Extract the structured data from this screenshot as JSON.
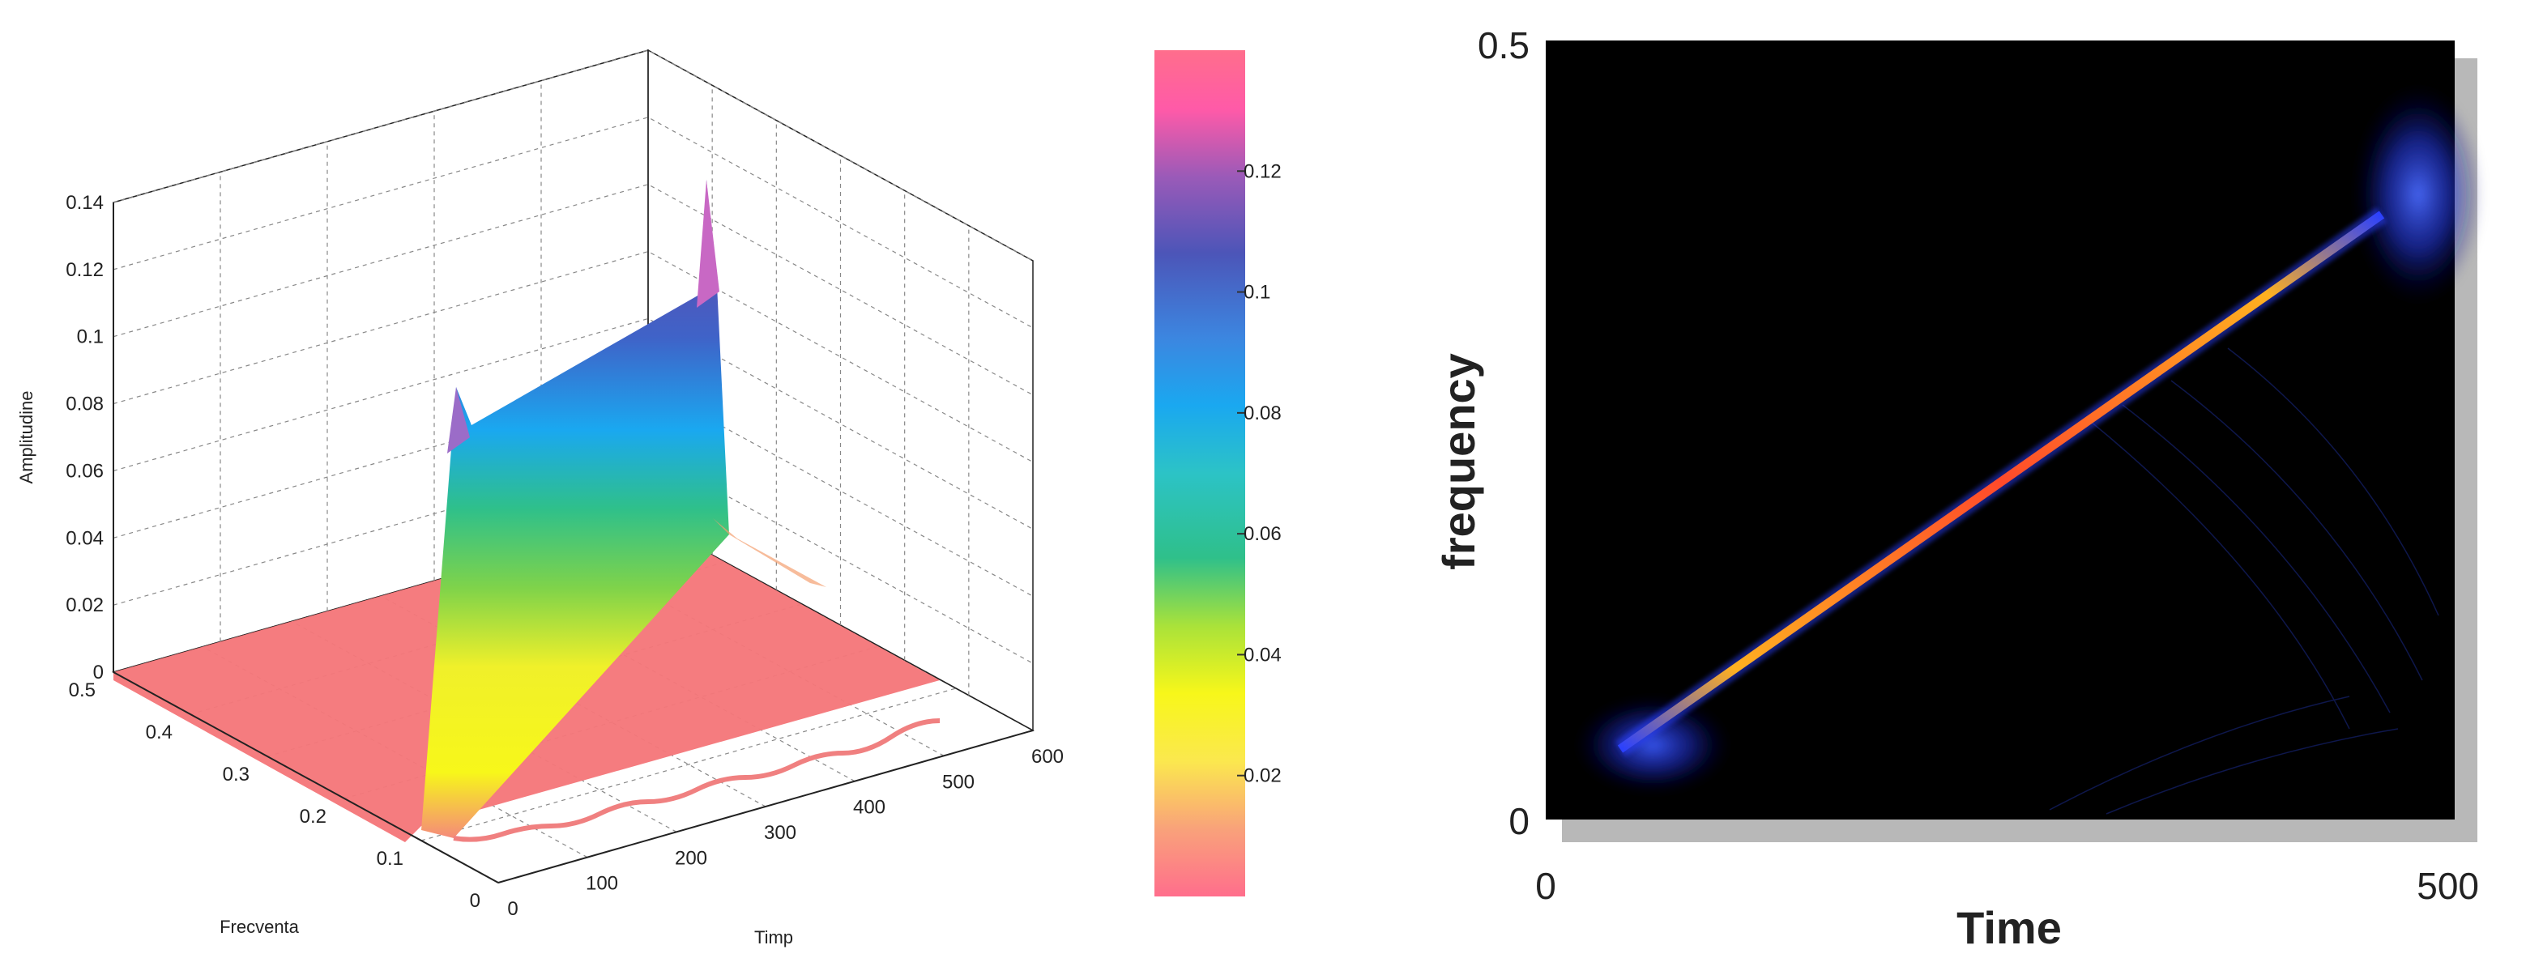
{
  "chart_data": [
    {
      "type": "surface3d",
      "zlabel": "Amplitudine",
      "xlabel": "Frecventa",
      "ylabel": "Timp",
      "z_ticks": [
        "0",
        "0.02",
        "0.04",
        "0.06",
        "0.08",
        "0.1",
        "0.12",
        "0.14"
      ],
      "freq_ticks": [
        "0",
        "0.1",
        "0.2",
        "0.3",
        "0.4",
        "0.5"
      ],
      "time_ticks": [
        "0",
        "100",
        "200",
        "300",
        "400",
        "500",
        "600"
      ],
      "zlim": [
        0,
        0.14
      ],
      "freq_range": [
        0,
        0.5
      ],
      "time_range": [
        0,
        600
      ],
      "ridge": {
        "time": [
          0,
          512
        ],
        "frequency": [
          0,
          0.5
        ],
        "amplitude_start_peak": 0.07,
        "amplitude_plateau_start": 0.06,
        "amplitude_plateau_end": 0.11,
        "amplitude_end_peak": 0.13
      },
      "colorbar": {
        "ticks": [
          "0.02",
          "0.04",
          "0.06",
          "0.08",
          "0.1",
          "0.12"
        ],
        "values": [
          0.02,
          0.04,
          0.06,
          0.08,
          0.1,
          0.12
        ],
        "range": [
          0,
          0.14
        ]
      },
      "colors": {
        "base": "#f5777a",
        "low": "#f7f71a",
        "mid1": "#2fc08a",
        "mid2": "#1aa8f0",
        "high": "#5a4fb3",
        "top": "#ff5aa8"
      }
    },
    {
      "type": "heatmap",
      "xlabel": "Time",
      "ylabel": "frequency",
      "x_ticks": [
        "0",
        "500"
      ],
      "y_ticks": [
        "0",
        "0.5"
      ],
      "xlim": [
        0,
        500
      ],
      "ylim": [
        0,
        0.5
      ],
      "ridge": {
        "x": [
          0,
          500
        ],
        "y": [
          0,
          0.5
        ]
      },
      "background": "#000000"
    }
  ]
}
